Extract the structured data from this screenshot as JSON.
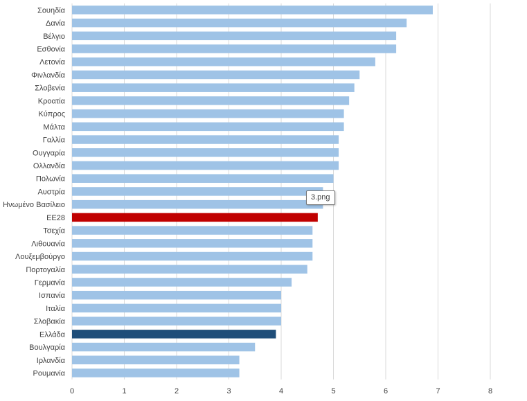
{
  "chart_data": {
    "type": "bar",
    "orientation": "horizontal",
    "categories": [
      "Σουηδία",
      "Δανία",
      "Βέλγιο",
      "Εσθονία",
      "Λετονία",
      "Φινλανδία",
      "Σλοβενία",
      "Κροατία",
      "Κύπρος",
      "Μάλτα",
      "Γαλλία",
      "Ουγγαρία",
      "Ολλανδία",
      "Πολωνία",
      "Αυστρία",
      "Ηνωμένο Βασίλειο",
      "ΕΕ28",
      "Τσεχία",
      "Λιθουανία",
      "Λουξεμβούργο",
      "Πορτογαλία",
      "Γερμανία",
      "Ισπανία",
      "Ιταλία",
      "Σλοβακία",
      "Ελλάδα",
      "Βουλγαρία",
      "Ιρλανδία",
      "Ρουμανία"
    ],
    "values": [
      6.9,
      6.4,
      6.2,
      6.2,
      5.8,
      5.5,
      5.4,
      5.3,
      5.2,
      5.2,
      5.1,
      5.1,
      5.1,
      5.0,
      4.8,
      4.8,
      4.7,
      4.6,
      4.6,
      4.6,
      4.5,
      4.2,
      4.0,
      4.0,
      4.0,
      3.9,
      3.5,
      3.2,
      3.2
    ],
    "xlim": [
      0,
      8
    ],
    "xticks": [
      "0",
      "1",
      "2",
      "3",
      "4",
      "5",
      "6",
      "7",
      "8"
    ],
    "grid": "vertical",
    "colors": {
      "default": "#9fc3e6",
      "highlight_eu": "#c00000",
      "highlight_greece": "#1f4e79"
    },
    "highlights": {
      "ΕΕ28": "highlight_eu",
      "Ελλάδα": "highlight_greece"
    },
    "title": "",
    "xlabel": "",
    "ylabel": ""
  },
  "tooltip": {
    "label": "3.png"
  }
}
